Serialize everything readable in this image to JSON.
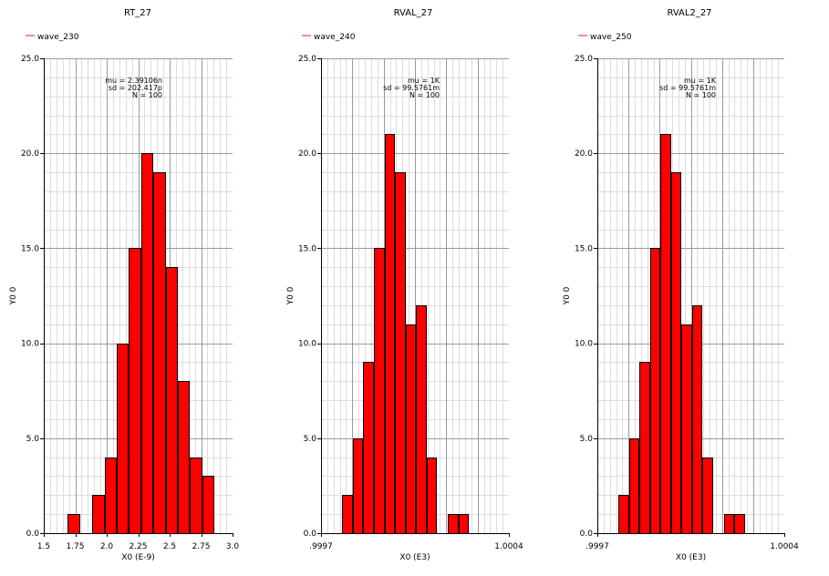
{
  "chart_data": [
    {
      "type": "bar",
      "title": "RT_27",
      "legend": "wave_230",
      "legend_color": "#ee2222",
      "bar_color": "#ff0000",
      "xlabel": "X0 (E-9)",
      "ylabel": "Y0 0",
      "xlim": [
        1.5,
        3.0
      ],
      "ylim": [
        0,
        25
      ],
      "x_ticks": [
        "1.5",
        "1.75",
        "2.0",
        "2.25",
        "2.5",
        "2.75",
        "3.0"
      ],
      "x_tick_values": [
        1.5,
        1.75,
        2.0,
        2.25,
        2.5,
        2.75,
        3.0
      ],
      "y_ticks": [
        "0.0",
        "5.0",
        "10.0",
        "15.0",
        "20.0",
        "25.0"
      ],
      "y_tick_values": [
        0,
        5,
        10,
        15,
        20,
        25
      ],
      "grid": true,
      "bin_edges": [
        1.692,
        1.789,
        1.886,
        1.983,
        2.08,
        2.177,
        2.274,
        2.371,
        2.468,
        2.565,
        2.662,
        2.759,
        2.856
      ],
      "values": [
        1,
        0,
        2,
        4,
        10,
        15,
        20,
        19,
        14,
        8,
        4,
        3
      ],
      "stats": {
        "mu": "mu = 2.39106n",
        "sd": "sd = 202.417p",
        "n": "N = 100"
      }
    },
    {
      "type": "bar",
      "title": "RVAL_27",
      "legend": "wave_240",
      "legend_color": "#ee2222",
      "bar_color": "#ff0000",
      "xlabel": "X0 (E3)",
      "ylabel": "Y0 0",
      "xlim": [
        0.99966,
        1.0004
      ],
      "ylim": [
        0,
        25
      ],
      "x_ticks": [
        ".9997",
        "1.0004"
      ],
      "x_tick_values": [
        0.99966,
        1.0004
      ],
      "y_ticks": [
        "0.0",
        "5.0",
        "10.0",
        "15.0",
        "20.0",
        "25.0"
      ],
      "y_tick_values": [
        0,
        5,
        10,
        15,
        20,
        25
      ],
      "grid": true,
      "bin_edges": [
        0.999743,
        0.999785,
        0.999826,
        0.999868,
        0.99991,
        0.999951,
        0.999993,
        1.000035,
        1.000076,
        1.000118,
        1.00016,
        1.000201,
        1.000243
      ],
      "values": [
        2,
        5,
        9,
        15,
        21,
        19,
        11,
        12,
        4,
        0,
        1,
        1
      ],
      "stats": {
        "mu": "mu = 1K",
        "sd": "sd = 99.5761m",
        "n": "N = 100"
      }
    },
    {
      "type": "bar",
      "title": "RVAL2_27",
      "legend": "wave_250",
      "legend_color": "#ee2222",
      "bar_color": "#ff0000",
      "xlabel": "X0 (E3)",
      "ylabel": "Y0 0",
      "xlim": [
        0.99966,
        1.0004
      ],
      "ylim": [
        0,
        25
      ],
      "x_ticks": [
        ".9997",
        "1.0004"
      ],
      "x_tick_values": [
        0.99966,
        1.0004
      ],
      "y_ticks": [
        "0.0",
        "5.0",
        "10.0",
        "15.0",
        "20.0",
        "25.0"
      ],
      "y_tick_values": [
        0,
        5,
        10,
        15,
        20,
        25
      ],
      "grid": true,
      "bin_edges": [
        0.999743,
        0.999785,
        0.999826,
        0.999868,
        0.99991,
        0.999951,
        0.999993,
        1.000035,
        1.000076,
        1.000118,
        1.00016,
        1.000201,
        1.000243
      ],
      "values": [
        2,
        5,
        9,
        15,
        21,
        19,
        11,
        12,
        4,
        0,
        1,
        1
      ],
      "stats": {
        "mu": "mu = 1K",
        "sd": "sd = 99.5761m",
        "n": "N = 100"
      }
    }
  ]
}
